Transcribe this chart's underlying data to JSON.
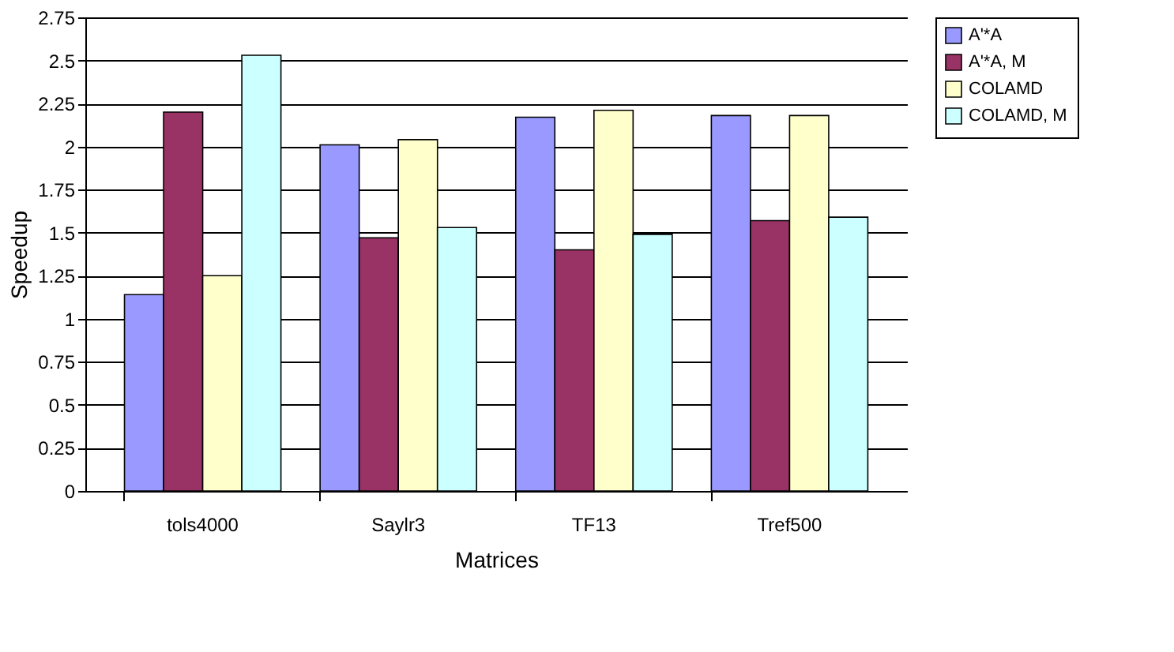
{
  "chart_data": {
    "type": "bar",
    "xlabel": "Matrices",
    "ylabel": "Speedup",
    "categories": [
      "tols4000",
      "Saylr3",
      "TF13",
      "Tref500"
    ],
    "series": [
      {
        "name": "A'*A",
        "color": "#9999ff",
        "values": [
          1.14,
          2.01,
          2.17,
          2.18
        ]
      },
      {
        "name": "A'*A, M",
        "color": "#993366",
        "values": [
          2.2,
          1.47,
          1.4,
          1.57
        ]
      },
      {
        "name": "COLAMD",
        "color": "#ffffcc",
        "values": [
          1.25,
          2.04,
          2.21,
          2.18
        ]
      },
      {
        "name": "COLAMD, M",
        "color": "#ccffff",
        "values": [
          2.53,
          1.53,
          1.49,
          1.59
        ]
      }
    ],
    "ylim": [
      0,
      2.75
    ],
    "yticks": [
      0,
      0.25,
      0.5,
      0.75,
      1,
      1.25,
      1.5,
      1.75,
      2,
      2.25,
      2.5,
      2.75
    ],
    "grid": "y",
    "legend": "right"
  }
}
